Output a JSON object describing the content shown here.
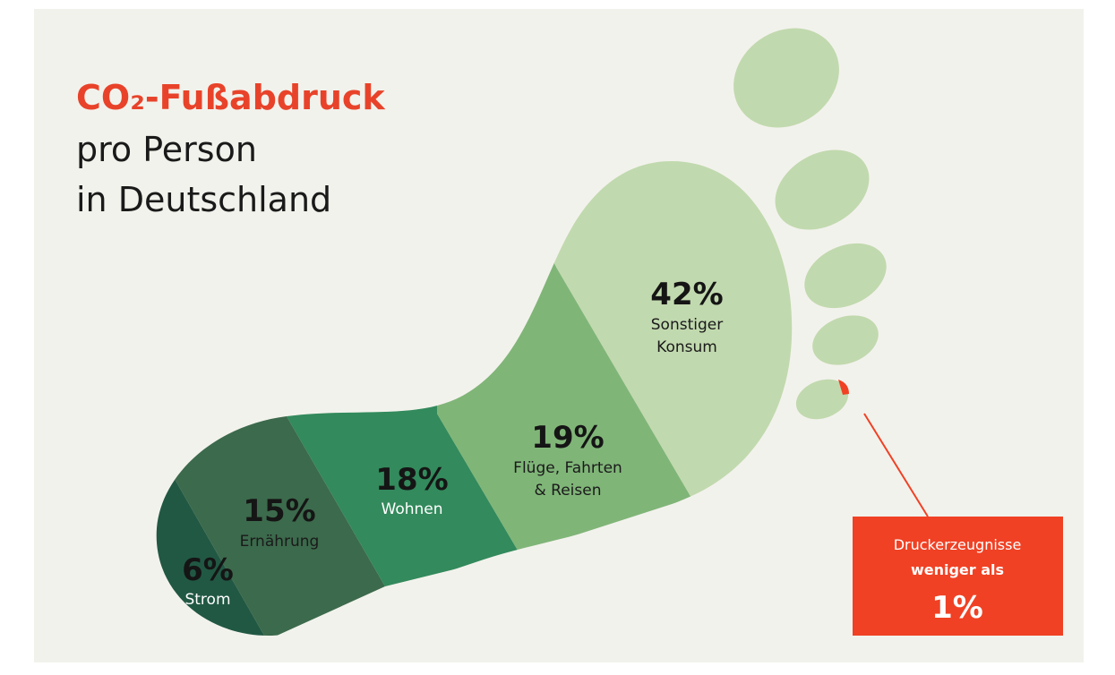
{
  "title": {
    "main": "CO₂-Fußabdruck",
    "line2": "pro Person",
    "line3": "in Deutschland"
  },
  "segments": [
    {
      "percent": "6%",
      "label": [
        "Strom"
      ]
    },
    {
      "percent": "15%",
      "label": [
        "Ernährung"
      ]
    },
    {
      "percent": "18%",
      "label": [
        "Wohnen"
      ]
    },
    {
      "percent": "19%",
      "label": [
        "Flüge, Fahrten",
        "& Reisen"
      ]
    },
    {
      "percent": "42%",
      "label": [
        "Sonstiger",
        "Konsum"
      ]
    }
  ],
  "callout": {
    "line1": "Druckerzeugnisse",
    "line2": "weniger als",
    "percent": "1%"
  }
}
